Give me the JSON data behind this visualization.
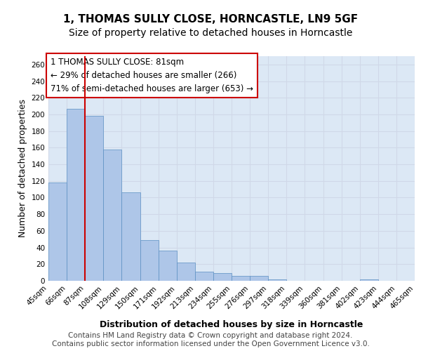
{
  "title1": "1, THOMAS SULLY CLOSE, HORNCASTLE, LN9 5GF",
  "title2": "Size of property relative to detached houses in Horncastle",
  "xlabel": "Distribution of detached houses by size in Horncastle",
  "ylabel": "Number of detached properties",
  "bar_values": [
    118,
    207,
    198,
    158,
    106,
    49,
    36,
    22,
    11,
    9,
    6,
    6,
    2,
    0,
    0,
    0,
    0,
    2,
    0,
    0
  ],
  "tick_labels": [
    "45sqm",
    "66sqm",
    "87sqm",
    "108sqm",
    "129sqm",
    "150sqm",
    "171sqm",
    "192sqm",
    "213sqm",
    "234sqm",
    "255sqm",
    "276sqm",
    "297sqm",
    "318sqm",
    "339sqm",
    "360sqm",
    "381sqm",
    "402sqm",
    "423sqm",
    "444sqm",
    "465sqm"
  ],
  "bar_color": "#aec6e8",
  "bar_edge_color": "#5a8fc2",
  "annotation_text": "1 THOMAS SULLY CLOSE: 81sqm\n← 29% of detached houses are smaller (266)\n71% of semi-detached houses are larger (653) →",
  "vline_x": 1.5,
  "vline_color": "#cc0000",
  "annotation_box_color": "#cc0000",
  "ylim": [
    0,
    270
  ],
  "yticks": [
    0,
    20,
    40,
    60,
    80,
    100,
    120,
    140,
    160,
    180,
    200,
    220,
    240,
    260
  ],
  "grid_color": "#d0d8e8",
  "background_color": "#dce8f5",
  "footer_text": "Contains HM Land Registry data © Crown copyright and database right 2024.\nContains public sector information licensed under the Open Government Licence v3.0.",
  "title_fontsize": 11,
  "subtitle_fontsize": 10,
  "xlabel_fontsize": 9,
  "ylabel_fontsize": 9,
  "tick_fontsize": 7.5,
  "annotation_fontsize": 8.5,
  "footer_fontsize": 7.5
}
